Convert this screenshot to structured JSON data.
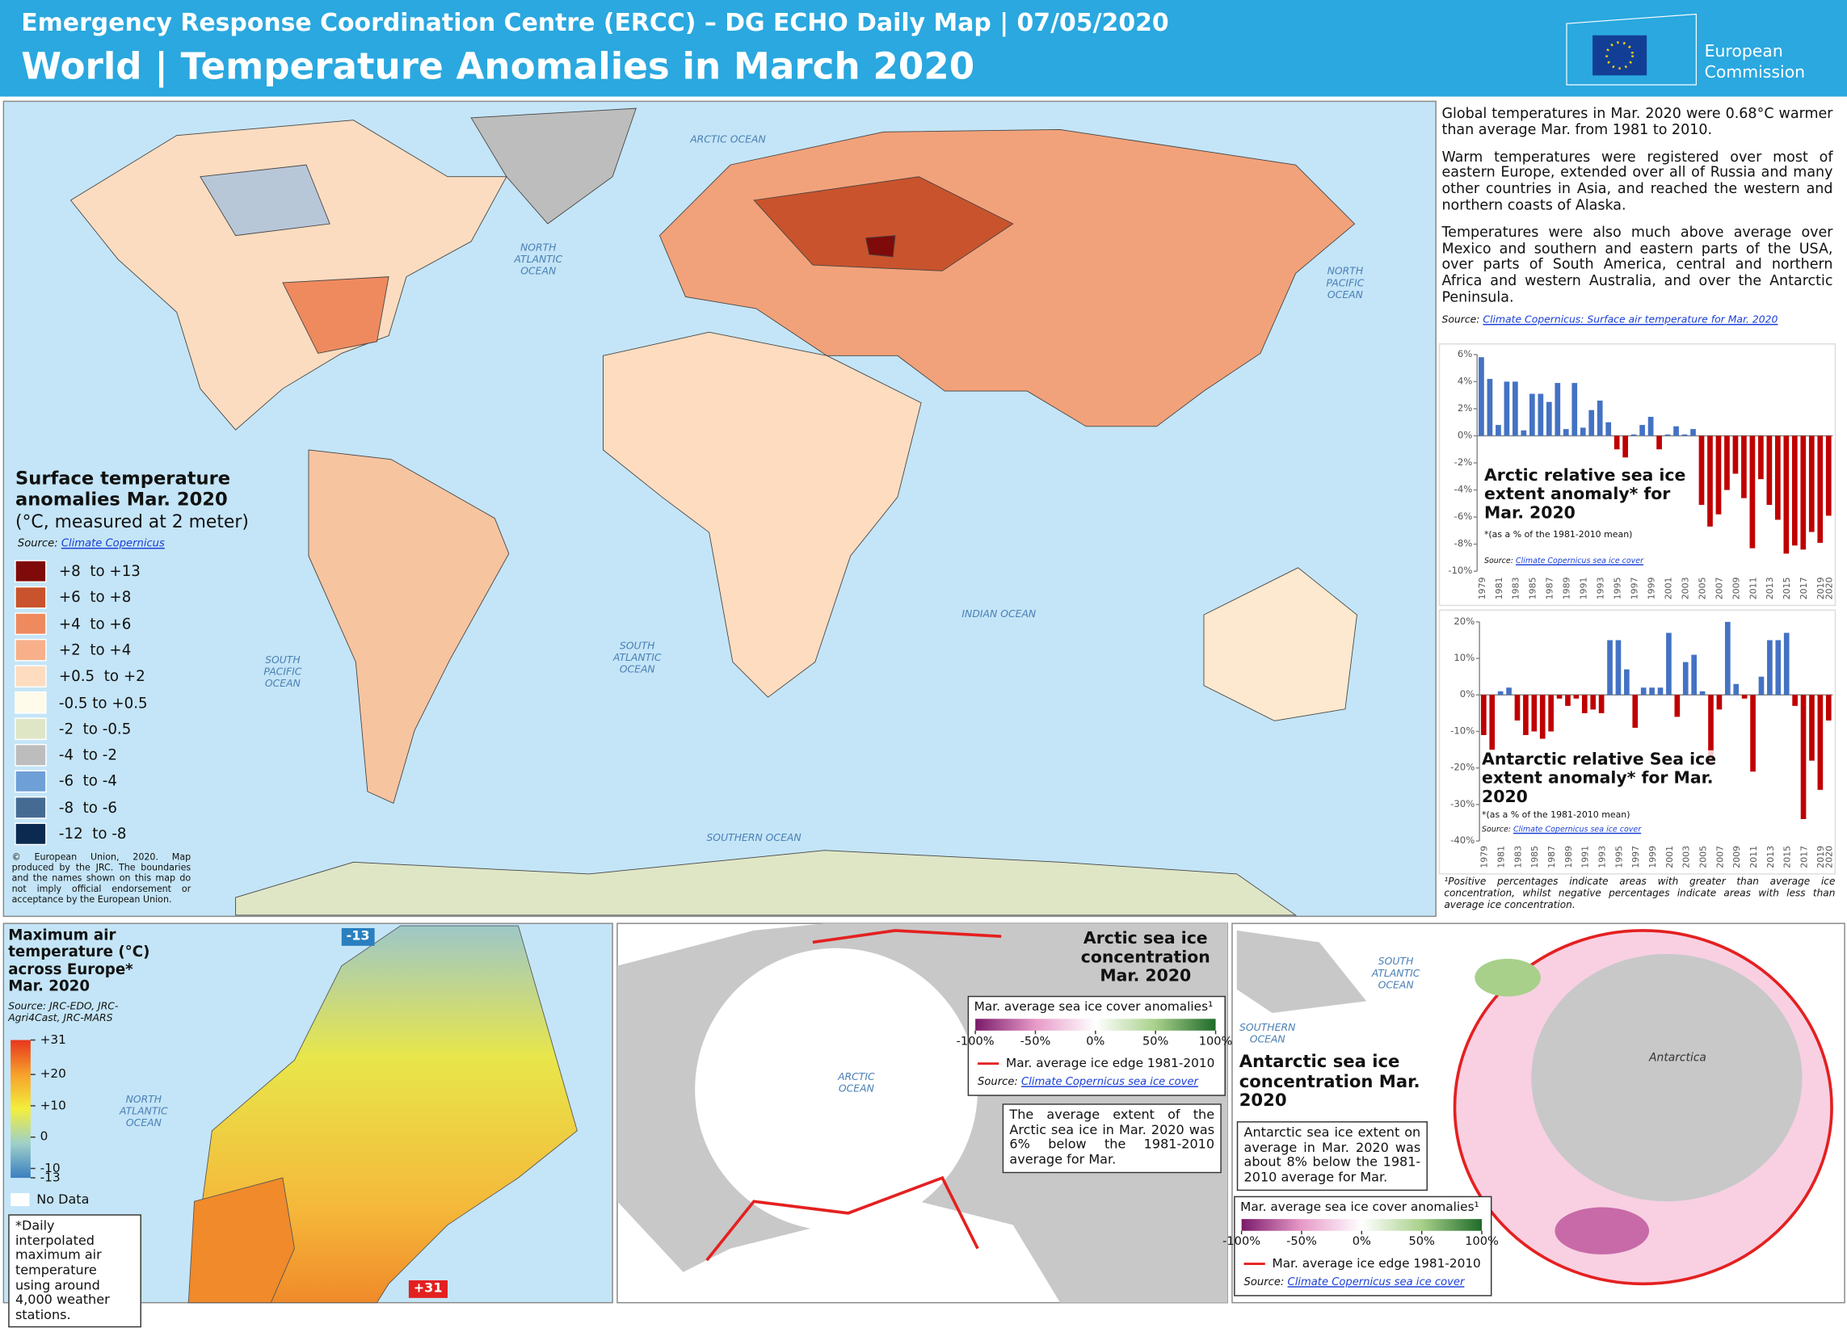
{
  "header": {
    "subtitle": "Emergency Response Coordination Centre (ERCC) – DG ECHO Daily Map | 07/05/2020",
    "title": "World | Temperature Anomalies in March 2020",
    "logo": [
      "European",
      "Commission"
    ]
  },
  "world_map": {
    "ocean_labels": [
      "ARCTIC OCEAN",
      "NORTH ATLANTIC OCEAN",
      "NORTH PACIFIC OCEAN",
      "SOUTH PACIFIC OCEAN",
      "SOUTH ATLANTIC OCEAN",
      "INDIAN OCEAN",
      "SOUTHERN OCEAN"
    ],
    "legend": {
      "title": "Surface temperature anomalies Mar. 2020",
      "unit": "(°C, measured at 2 meter)",
      "source_label": "Source:",
      "source_link": "Climate Copernicus",
      "classes": [
        {
          "label": "+8  to +13",
          "color": "#7f0a0a"
        },
        {
          "label": "+6  to +8",
          "color": "#c9532c"
        },
        {
          "label": "+4  to +6",
          "color": "#ef8a5f"
        },
        {
          "label": "+2  to +4",
          "color": "#f7b08a"
        },
        {
          "label": "+0.5  to +2",
          "color": "#fddcc0"
        },
        {
          "label": "-0.5 to +0.5",
          "color": "#fffbea"
        },
        {
          "label": "-2  to -0.5",
          "color": "#dfe6c6"
        },
        {
          "label": "-4  to -2",
          "color": "#bdbdbd"
        },
        {
          "label": "-6  to -4",
          "color": "#6e9fd6"
        },
        {
          "label": "-8  to -6",
          "color": "#466b93"
        },
        {
          "label": "-12  to -8",
          "color": "#0c2a50"
        }
      ]
    },
    "copyright": "© European Union, 2020. Map produced by the JRC. The boundaries and the names shown on this map do not imply official endorsement or acceptance by the European Union."
  },
  "summary": {
    "paragraphs": [
      "Global temperatures in Mar. 2020 were 0.68°C warmer than average Mar. from 1981 to 2010.",
      "Warm temperatures were registered over most of eastern Europe, extended over all of Russia and many other countries in Asia, and reached the western and northern coasts of Alaska.",
      "Temperatures were also much above average over Mexico and southern and eastern parts of the USA, over parts of South America, central and northern Africa and western Australia, and over the Antarctic Peninsula."
    ],
    "source_label": "Source:",
    "source_link": "Climate Copernicus: Surface air temperature for Mar. 2020",
    "footnote": "¹Positive percentages indicate areas with greater than average ice concentration, whilst negative percentages indicate areas with less than average ice concentration."
  },
  "chart_data": [
    {
      "type": "bar",
      "title": "Arctic relative sea ice extent anomaly* for Mar. 2020",
      "subtitle": "*(as a % of the 1981-2010 mean)",
      "source_label": "Source:",
      "source_link": "Climate Copernicus sea ice cover",
      "positive_color": "#4472c4",
      "negative_color": "#c00000",
      "categories": [
        "1979",
        null,
        "1981",
        null,
        "1983",
        null,
        "1985",
        null,
        "1987",
        null,
        "1989",
        null,
        "1991",
        null,
        "1993",
        null,
        "1995",
        null,
        "1997",
        null,
        "1999",
        null,
        "2001",
        null,
        "2003",
        null,
        "2005",
        null,
        "2007",
        null,
        "2009",
        null,
        "2011",
        null,
        "2013",
        null,
        "2015",
        null,
        "2017",
        null,
        "2019",
        "2020"
      ],
      "values": [
        5.8,
        4.2,
        0.8,
        4.0,
        4.0,
        0.4,
        3.1,
        3.1,
        2.5,
        3.9,
        0.5,
        3.9,
        0.6,
        1.9,
        2.6,
        1.0,
        -1.0,
        -1.6,
        0.1,
        0.8,
        1.4,
        -1.0,
        0.1,
        0.7,
        0.1,
        0.5,
        -5.1,
        -6.7,
        -5.8,
        -4.0,
        -2.8,
        -4.6,
        -8.3,
        -3.2,
        -5.1,
        -6.2,
        -8.7,
        -8.1,
        -8.4,
        -7.1,
        -7.9,
        -5.9
      ],
      "ylim": [
        -10,
        6
      ],
      "yticks": [
        {
          "value": -10,
          "label": "-10%"
        },
        {
          "value": -8,
          "label": "-8%"
        },
        {
          "value": -6,
          "label": "-6%"
        },
        {
          "value": -4,
          "label": "-4%"
        },
        {
          "value": -2,
          "label": "-2%"
        },
        {
          "value": 0,
          "label": "0%"
        },
        {
          "value": 2,
          "label": "2%"
        },
        {
          "value": 4,
          "label": "4%"
        },
        {
          "value": 6,
          "label": "6%"
        }
      ]
    },
    {
      "type": "bar",
      "title": "Antarctic relative Sea ice extent anomaly* for Mar. 2020",
      "subtitle": "*(as a % of the 1981-2010 mean)",
      "source_label": "Source:",
      "source_link": "Climate Copernicus sea ice cover",
      "positive_color": "#4472c4",
      "negative_color": "#c00000",
      "categories": [
        "1979",
        null,
        "1981",
        null,
        "1983",
        null,
        "1985",
        null,
        "1987",
        null,
        "1989",
        null,
        "1991",
        null,
        "1993",
        null,
        "1995",
        null,
        "1997",
        null,
        "1999",
        null,
        "2001",
        null,
        "2003",
        null,
        "2005",
        null,
        "2007",
        null,
        "2009",
        null,
        "2011",
        null,
        "2013",
        null,
        "2015",
        null,
        "2017",
        null,
        "2019",
        "2020"
      ],
      "values": [
        -11,
        -15,
        1,
        2,
        -7,
        -11,
        -10,
        -12,
        -10,
        -1,
        -3,
        -1,
        -5,
        -4,
        -5,
        15,
        15,
        7,
        -9,
        2,
        2,
        2,
        17,
        -6,
        9,
        11,
        1,
        -19,
        -4,
        20,
        3,
        -1,
        -21,
        5,
        15,
        15,
        17,
        -3,
        -34,
        -18,
        -26,
        -7
      ],
      "ylim": [
        -40,
        20
      ],
      "yticks": [
        {
          "value": -40,
          "label": "-40%"
        },
        {
          "value": -30,
          "label": "-30%"
        },
        {
          "value": -20,
          "label": "-20%"
        },
        {
          "value": -10,
          "label": "-10%"
        },
        {
          "value": 0,
          "label": "0%"
        },
        {
          "value": 10,
          "label": "10%"
        },
        {
          "value": 20,
          "label": "20%"
        }
      ]
    }
  ],
  "europe_map": {
    "title": "Maximum air temperature (°C) across Europe* Mar. 2020",
    "source": "Source: JRC-EDO, JRC-Agri4Cast, JRC-MARS",
    "ocean_label": "NORTH ATLANTIC OCEAN",
    "scale": {
      "lim": [
        -13,
        31
      ],
      "colors": [
        "#3a7fc0",
        "#9fd0c8",
        "#f3ee3c",
        "#f6a12c",
        "#e8361c"
      ],
      "ticks": [
        {
          "value": 31,
          "label": "+31"
        },
        {
          "value": 20,
          "label": "+20"
        },
        {
          "value": 10,
          "label": "+10"
        },
        0,
        -10,
        -13
      ]
    },
    "no_data": "No Data",
    "footnote": "*Daily interpolated maximum air temperature using around 4,000 weather stations."
  },
  "sea_ice_legend": {
    "title": "Mar. average sea ice cover anomalies¹",
    "colors": [
      "#7a1a6a",
      "#e79ac8",
      "#ffffff",
      "#a8d08a",
      "#1f6a2a"
    ],
    "ticks": [
      {
        "value": -100,
        "label": "-100%"
      },
      {
        "value": -50,
        "label": "-50%"
      },
      {
        "value": 0,
        "label": "0%"
      },
      {
        "value": 50,
        "label": "50%"
      },
      {
        "value": 100,
        "label": "100%"
      }
    ],
    "edge": "Mar. average ice edge 1981-2010",
    "source_label": "Source:",
    "source_link": "Climate Copernicus sea ice cover"
  },
  "arctic_panel": {
    "title": "Arctic sea ice concentration Mar. 2020",
    "ocean_label": "ARCTIC OCEAN",
    "note": "The average extent of the Arctic sea ice in Mar. 2020 was 6% below the 1981-2010 average for Mar."
  },
  "antarctic_panel": {
    "title": "Antarctic sea ice concentration Mar. 2020",
    "ocean_labels": [
      "SOUTH ATLANTIC OCEAN",
      "SOUTHERN OCEAN"
    ],
    "land_label": "Antarctica",
    "note": "Antarctic sea ice extent on average in Mar. 2020 was about 8% below the 1981-2010 average for Mar."
  }
}
